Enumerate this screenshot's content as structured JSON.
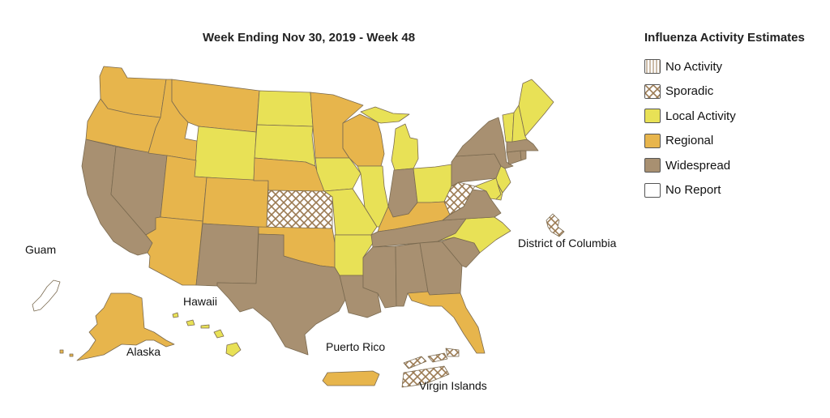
{
  "title": "Week Ending Nov 30, 2019 - Week 48",
  "legend": {
    "title": "Influenza Activity Estimates",
    "items": [
      {
        "key": "none",
        "label": "No Activity"
      },
      {
        "key": "sporadic",
        "label": "Sporadic"
      },
      {
        "key": "local",
        "label": "Local Activity"
      },
      {
        "key": "regional",
        "label": "Regional"
      },
      {
        "key": "widespread",
        "label": "Widespread"
      },
      {
        "key": "noreport",
        "label": "No Report"
      }
    ]
  },
  "colors": {
    "local": "#e8e156",
    "regional": "#e7b54c",
    "widespread": "#a89071",
    "hatch": "#9b7a52",
    "noreport": "#ffffff"
  },
  "territory_labels": {
    "guam": "Guam",
    "hawaii": "Hawaii",
    "alaska": "Alaska",
    "puerto_rico": "Puerto Rico",
    "virgin_islands": "Virgin Islands",
    "dc": "District of Columbia"
  },
  "activity_by_state": {
    "Washington": "regional",
    "Oregon": "regional",
    "California": "widespread",
    "Nevada": "widespread",
    "Idaho": "regional",
    "Montana": "regional",
    "Wyoming": "local",
    "Utah": "regional",
    "Arizona": "regional",
    "Colorado": "regional",
    "New Mexico": "widespread",
    "North Dakota": "local",
    "South Dakota": "local",
    "Nebraska": "regional",
    "Kansas": "sporadic",
    "Oklahoma": "regional",
    "Texas": "widespread",
    "Minnesota": "regional",
    "Iowa": "local",
    "Missouri": "local",
    "Arkansas": "local",
    "Louisiana": "widespread",
    "Wisconsin": "regional",
    "Illinois": "local",
    "Michigan": "local",
    "Indiana": "widespread",
    "Ohio": "local",
    "Kentucky": "regional",
    "Tennessee": "widespread",
    "Mississippi": "widespread",
    "Alabama": "widespread",
    "Georgia": "widespread",
    "Florida": "regional",
    "South Carolina": "widespread",
    "North Carolina": "local",
    "Virginia": "widespread",
    "West Virginia": "sporadic",
    "Pennsylvania": "widespread",
    "New York": "widespread",
    "New Jersey": "local",
    "Maryland": "local",
    "Delaware": "local",
    "Connecticut": "widespread",
    "Rhode Island": "widespread",
    "Massachusetts": "widespread",
    "Vermont": "local",
    "New Hampshire": "local",
    "Maine": "local",
    "Alaska": "regional",
    "Hawaii": "local",
    "Guam": "noreport",
    "Puerto Rico": "regional",
    "Virgin Islands": "sporadic",
    "District of Columbia": "sporadic"
  }
}
